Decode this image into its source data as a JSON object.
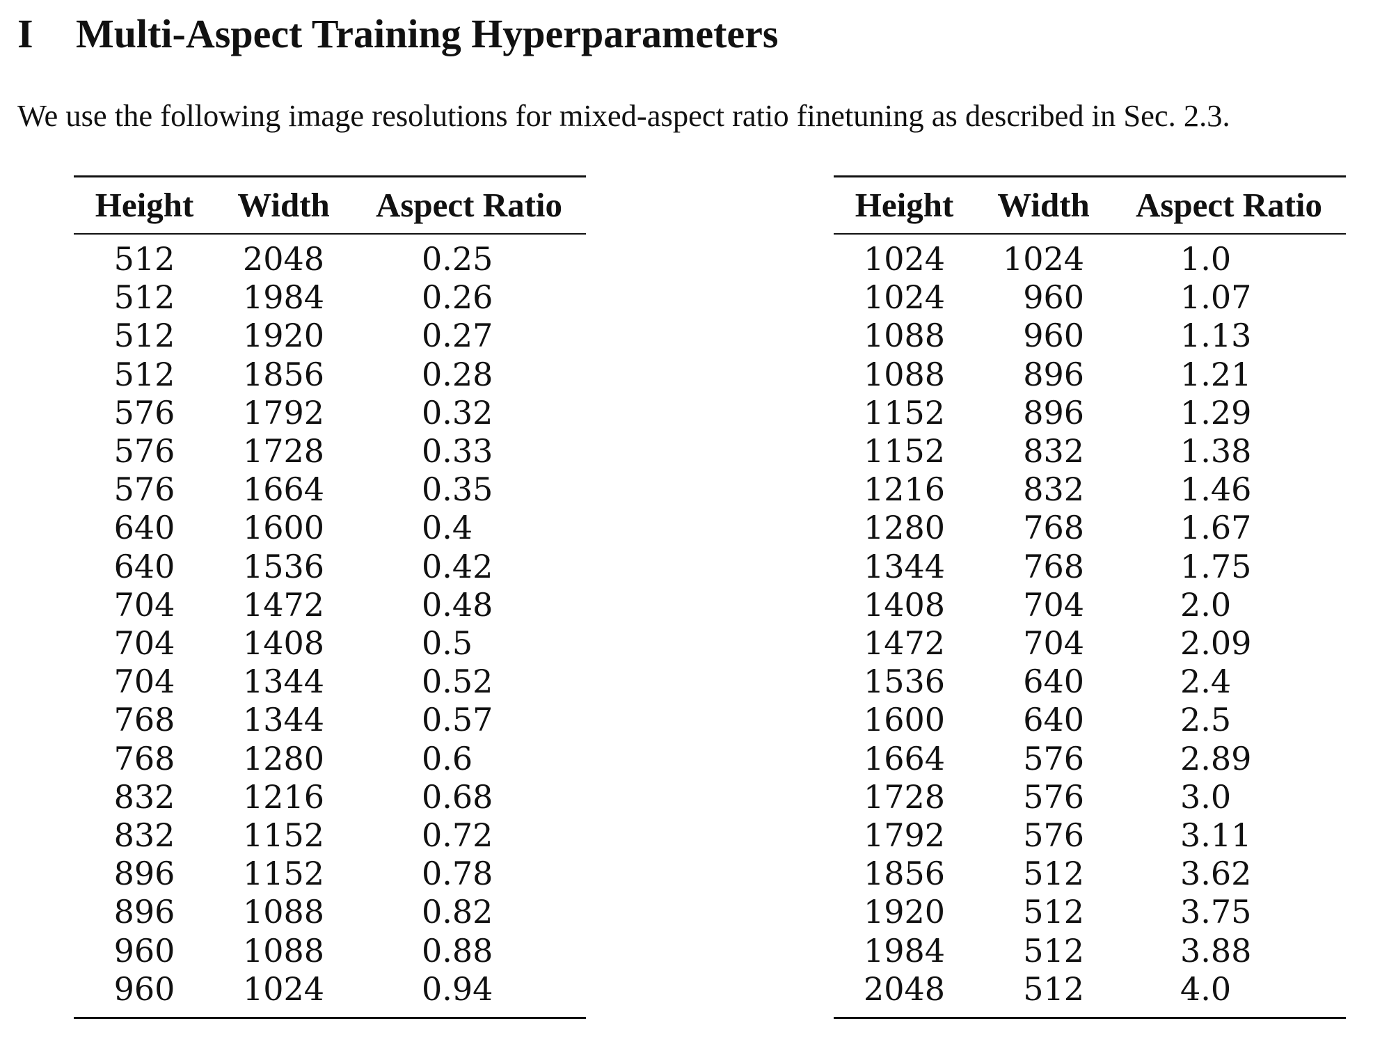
{
  "section": {
    "number": "I",
    "title": "Multi-Aspect Training Hyperparameters"
  },
  "intro_text": "We use the following image resolutions for mixed-aspect ratio finetuning as described in Sec. 2.3.",
  "table_headers": [
    "Height",
    "Width",
    "Aspect Ratio"
  ],
  "table_left": [
    [
      "512",
      "2048",
      "0.25"
    ],
    [
      "512",
      "1984",
      "0.26"
    ],
    [
      "512",
      "1920",
      "0.27"
    ],
    [
      "512",
      "1856",
      "0.28"
    ],
    [
      "576",
      "1792",
      "0.32"
    ],
    [
      "576",
      "1728",
      "0.33"
    ],
    [
      "576",
      "1664",
      "0.35"
    ],
    [
      "640",
      "1600",
      "0.4"
    ],
    [
      "640",
      "1536",
      "0.42"
    ],
    [
      "704",
      "1472",
      "0.48"
    ],
    [
      "704",
      "1408",
      "0.5"
    ],
    [
      "704",
      "1344",
      "0.52"
    ],
    [
      "768",
      "1344",
      "0.57"
    ],
    [
      "768",
      "1280",
      "0.6"
    ],
    [
      "832",
      "1216",
      "0.68"
    ],
    [
      "832",
      "1152",
      "0.72"
    ],
    [
      "896",
      "1152",
      "0.78"
    ],
    [
      "896",
      "1088",
      "0.82"
    ],
    [
      "960",
      "1088",
      "0.88"
    ],
    [
      "960",
      "1024",
      "0.94"
    ]
  ],
  "table_right": [
    [
      "1024",
      "1024",
      "1.0"
    ],
    [
      "1024",
      "960",
      "1.07"
    ],
    [
      "1088",
      "960",
      "1.13"
    ],
    [
      "1088",
      "896",
      "1.21"
    ],
    [
      "1152",
      "896",
      "1.29"
    ],
    [
      "1152",
      "832",
      "1.38"
    ],
    [
      "1216",
      "832",
      "1.46"
    ],
    [
      "1280",
      "768",
      "1.67"
    ],
    [
      "1344",
      "768",
      "1.75"
    ],
    [
      "1408",
      "704",
      "2.0"
    ],
    [
      "1472",
      "704",
      "2.09"
    ],
    [
      "1536",
      "640",
      "2.4"
    ],
    [
      "1600",
      "640",
      "2.5"
    ],
    [
      "1664",
      "576",
      "2.89"
    ],
    [
      "1728",
      "576",
      "3.0"
    ],
    [
      "1792",
      "576",
      "3.11"
    ],
    [
      "1856",
      "512",
      "3.62"
    ],
    [
      "1920",
      "512",
      "3.75"
    ],
    [
      "1984",
      "512",
      "3.88"
    ],
    [
      "2048",
      "512",
      "4.0"
    ]
  ]
}
